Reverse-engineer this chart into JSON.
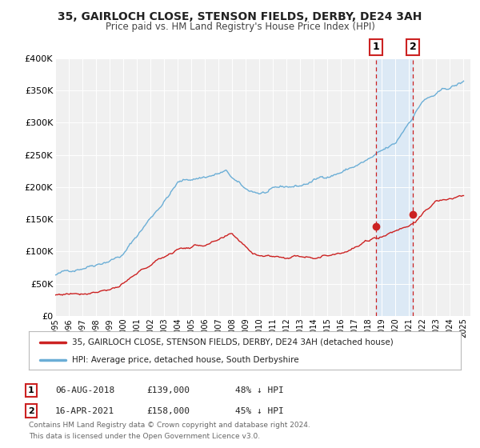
{
  "title": "35, GAIRLOCH CLOSE, STENSON FIELDS, DERBY, DE24 3AH",
  "subtitle": "Price paid vs. HM Land Registry's House Price Index (HPI)",
  "ylim": [
    0,
    400000
  ],
  "yticks": [
    0,
    50000,
    100000,
    150000,
    200000,
    250000,
    300000,
    350000,
    400000
  ],
  "ytick_labels": [
    "£0",
    "£50K",
    "£100K",
    "£150K",
    "£200K",
    "£250K",
    "£300K",
    "£350K",
    "£400K"
  ],
  "xlim_start": 1995.0,
  "xlim_end": 2025.5,
  "hpi_color": "#6baed6",
  "price_color": "#cc2222",
  "marker1_date": 2018.583,
  "marker1_price": 139000,
  "marker2_date": 2021.28,
  "marker2_price": 158000,
  "marker1_date_str": "06-AUG-2018",
  "marker1_price_str": "£139,000",
  "marker1_pct": "48% ↓ HPI",
  "marker2_date_str": "16-APR-2021",
  "marker2_price_str": "£158,000",
  "marker2_pct": "45% ↓ HPI",
  "legend_line1": "35, GAIRLOCH CLOSE, STENSON FIELDS, DERBY, DE24 3AH (detached house)",
  "legend_line2": "HPI: Average price, detached house, South Derbyshire",
  "footnote1": "Contains HM Land Registry data © Crown copyright and database right 2024.",
  "footnote2": "This data is licensed under the Open Government Licence v3.0.",
  "background_color": "#ffffff",
  "plot_bg_color": "#f0f0f0",
  "shade_color": "#dce9f5",
  "grid_color": "#ffffff",
  "box_edge_color": "#cc2222"
}
